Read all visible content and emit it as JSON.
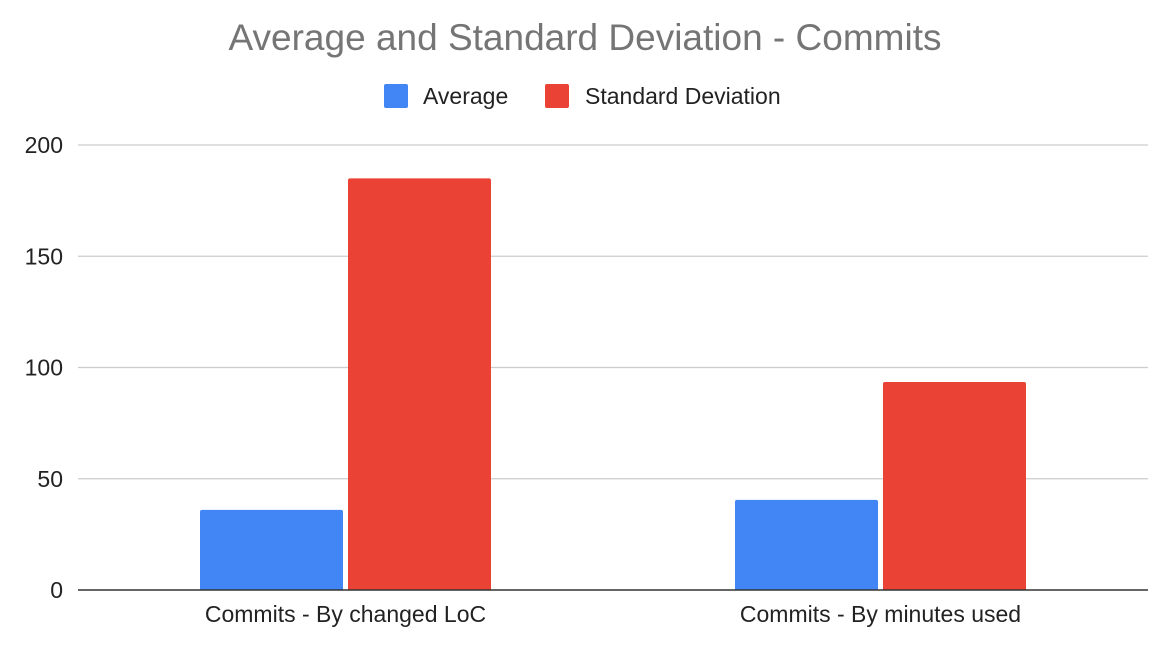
{
  "chart_data": {
    "type": "bar",
    "title": "Average and Standard Deviation - Commits",
    "xlabel": "",
    "ylabel": "",
    "categories": [
      "Commits - By changed LoC",
      "Commits - By minutes used"
    ],
    "series": [
      {
        "name": "Average",
        "color": "#4285f4",
        "values": [
          36,
          40.5
        ]
      },
      {
        "name": "Standard Deviation",
        "color": "#ea4335",
        "values": [
          185,
          93.5
        ]
      }
    ],
    "ylim": [
      0,
      200
    ],
    "yticks": [
      "0",
      "50",
      "100",
      "150",
      "200"
    ],
    "grid": true,
    "legend_position": "top-center"
  }
}
